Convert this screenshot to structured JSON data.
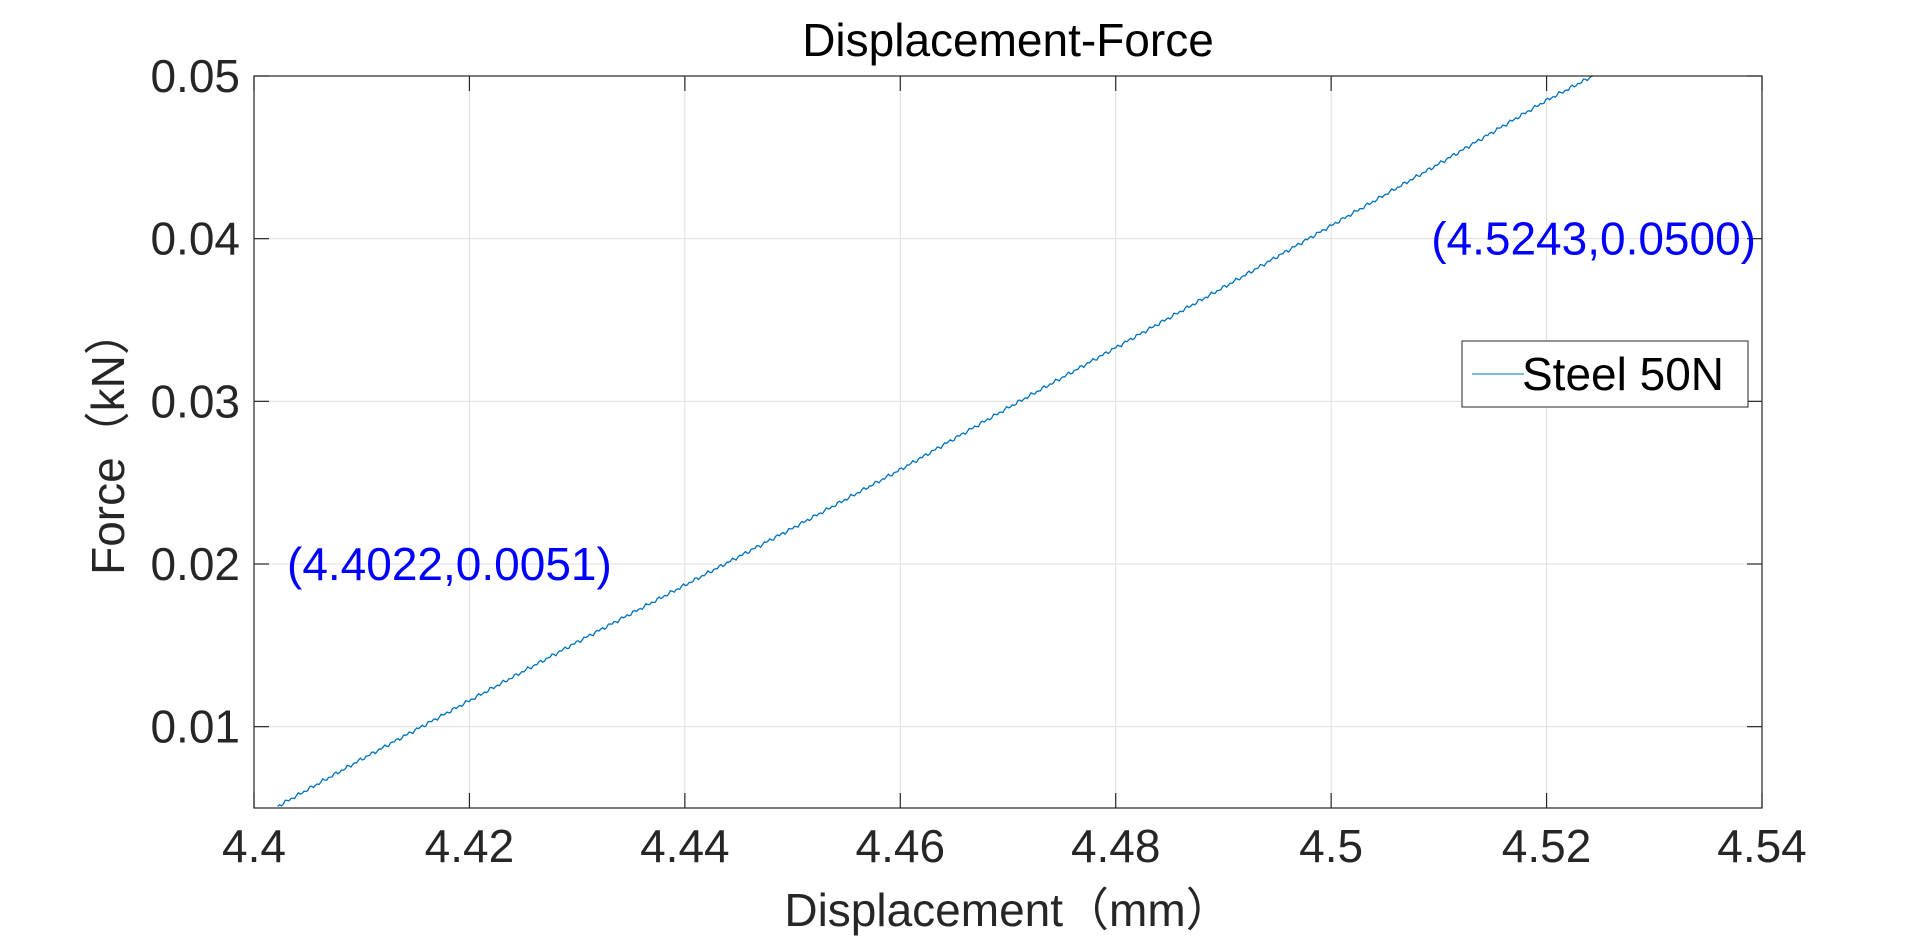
{
  "chart_data": {
    "type": "line",
    "title": "Displacement-Force",
    "xlabel": "Displacement（mm）",
    "ylabel": "Force（kN）",
    "xlim": [
      4.4,
      4.54
    ],
    "ylim": [
      0.005,
      0.05
    ],
    "xticks": [
      4.4,
      4.42,
      4.44,
      4.46,
      4.48,
      4.5,
      4.52,
      4.54
    ],
    "xtick_labels": [
      "4.4",
      "4.42",
      "4.44",
      "4.46",
      "4.48",
      "4.5",
      "4.52",
      "4.54"
    ],
    "yticks": [
      0.01,
      0.02,
      0.03,
      0.04,
      0.05
    ],
    "ytick_labels": [
      "0.01",
      "0.02",
      "0.03",
      "0.04",
      "0.05"
    ],
    "grid": true,
    "legend_position": "right",
    "series": [
      {
        "name": "Steel 50N",
        "color": "#0072BD",
        "x": [
          4.4022,
          4.41,
          4.42,
          4.43,
          4.44,
          4.45,
          4.46,
          4.47,
          4.48,
          4.49,
          4.5,
          4.51,
          4.52,
          4.5243
        ],
        "y": [
          0.0051,
          0.008,
          0.0116,
          0.0152,
          0.0187,
          0.0222,
          0.0258,
          0.0296,
          0.0333,
          0.037,
          0.0408,
          0.0446,
          0.0485,
          0.05
        ]
      }
    ],
    "annotations": [
      {
        "text": "(4.4022,0.0051)",
        "x": 4.4022,
        "y": 0.0051,
        "color": "#0000FF"
      },
      {
        "text": "(4.5243,0.0500)",
        "x": 4.5243,
        "y": 0.05,
        "color": "#0000FF"
      }
    ]
  }
}
